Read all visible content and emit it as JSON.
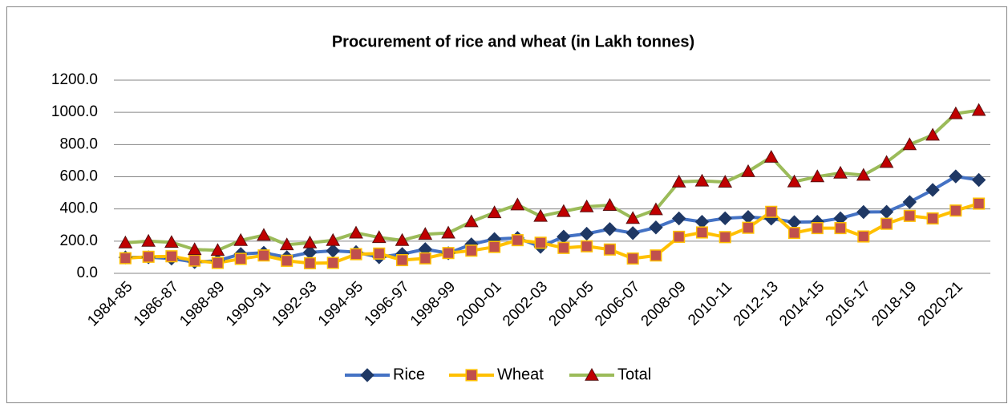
{
  "chart_data": {
    "type": "line",
    "title": "Procurement of rice and wheat (in Lakh tonnes)",
    "categories": [
      "1984-85",
      null,
      "1986-87",
      null,
      "1988-89",
      null,
      "1990-91",
      null,
      "1992-93",
      null,
      "1994-95",
      null,
      "1996-97",
      null,
      "1998-99",
      null,
      "2000-01",
      null,
      "2002-03",
      null,
      "2004-05",
      null,
      "2006-07",
      null,
      "2008-09",
      null,
      "2010-11",
      null,
      "2012-13",
      null,
      "2014-15",
      null,
      "2016-17",
      null,
      "2018-19",
      null,
      "2020-21",
      null
    ],
    "series": [
      {
        "name": "Rice",
        "color": "#4472c4",
        "marker_color": "#1f3864",
        "marker": "diamond",
        "values": [
          99,
          100,
          92,
          70,
          78,
          120,
          128,
          100,
          130,
          140,
          132,
          100,
          120,
          150,
          125,
          180,
          213,
          220,
          165,
          228,
          246,
          275,
          250,
          285,
          341,
          320,
          342,
          350,
          340,
          318,
          320,
          342,
          381,
          382,
          443,
          518,
          602,
          580
        ]
      },
      {
        "name": "Wheat",
        "color": "#ffc000",
        "marker_color": "#c0504d",
        "marker": "square",
        "values": [
          94,
          103,
          106,
          79,
          65,
          90,
          111,
          78,
          63,
          65,
          119,
          123,
          82,
          93,
          126,
          141,
          164,
          206,
          190,
          158,
          168,
          148,
          92,
          111,
          227,
          254,
          225,
          283,
          382,
          251,
          281,
          281,
          229,
          308,
          357,
          341,
          390,
          433
        ]
      },
      {
        "name": "Total",
        "color": "#9bbb59",
        "marker_color": "#c00000",
        "marker": "triangle",
        "values": [
          190,
          200,
          193,
          148,
          143,
          205,
          237,
          178,
          190,
          205,
          251,
          223,
          205,
          243,
          251,
          321,
          377,
          426,
          355,
          385,
          414,
          423,
          342,
          396,
          568,
          574,
          567,
          633,
          722,
          569,
          601,
          623,
          610,
          690,
          800,
          859,
          992,
          1013
        ]
      }
    ],
    "ylim": [
      0,
      1200
    ],
    "yticks": [
      {
        "value": 0,
        "label": "0.0"
      },
      {
        "value": 200,
        "label": "200.0"
      },
      {
        "value": 400,
        "label": "400.0"
      },
      {
        "value": 600,
        "label": "600.0"
      },
      {
        "value": 800,
        "label": "800.0"
      },
      {
        "value": 1000,
        "label": "1000.0"
      },
      {
        "value": 1200,
        "label": "1200.0"
      }
    ],
    "grid": true,
    "legend": "bottom"
  }
}
